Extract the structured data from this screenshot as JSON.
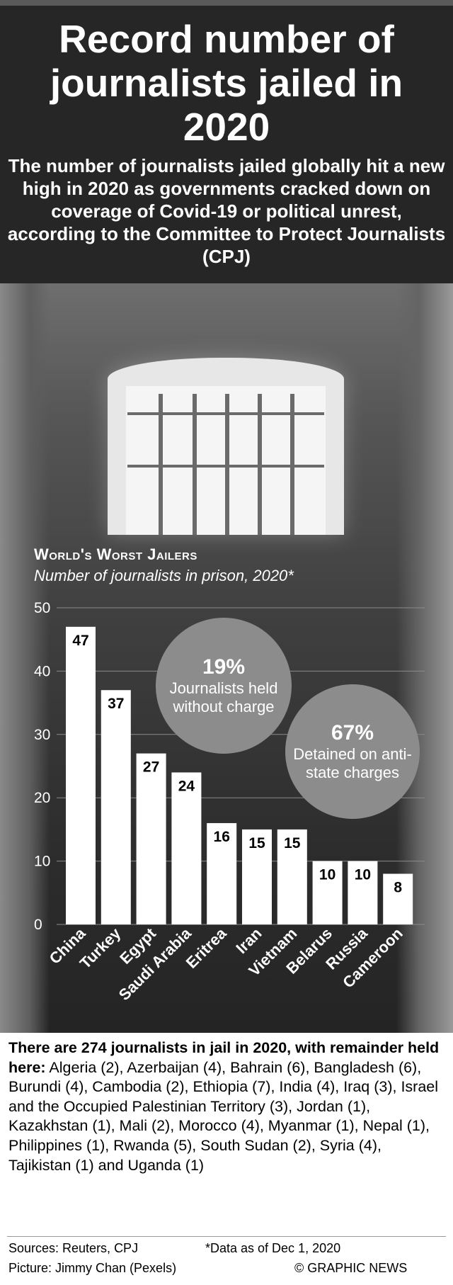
{
  "title": "Record number of journalists jailed in 2020",
  "subtitle": "The number of journalists jailed globally hit a new high in 2020 as governments cracked down on coverage of Covid-19 or political unrest, according to the Committee to Protect Journalists (CPJ)",
  "callouts": [
    {
      "percent": "19%",
      "text": "Journalists held without charge"
    },
    {
      "percent": "67%",
      "text": "Detained on anti-state charges"
    }
  ],
  "remainder": {
    "lead": "There are 274 journalists in jail in 2020, with remainder held here:",
    "list": "Algeria (2), Azerbaijan (4), Bahrain (6), Bangladesh (6), Burundi (4), Cambodia (2), Ethiopia (7), India (4), Iraq (3), Israel and the Occupied Palestinian Territory (3), Jordan (1), Kazakhstan (1), Mali (2), Morocco (4), Myanmar (1), Nepal (1), Philippines (1), Rwanda (5), South Sudan (2), Syria (4), Tajikistan (1) and Uganda (1)"
  },
  "footer": {
    "sources": "Sources: Reuters, CPJ",
    "note": "*Data as of Dec 1, 2020",
    "picture": "Picture: Jimmy Chan (Pexels)",
    "copyright": "© GRAPHIC NEWS"
  },
  "chart_data": {
    "type": "bar",
    "title": "World's Worst Jailers",
    "subtitle": "Number of journalists in prison, 2020*",
    "categories": [
      "China",
      "Turkey",
      "Egypt",
      "Saudi Arabia",
      "Eritrea",
      "Iran",
      "Vietnam",
      "Belarus",
      "Russia",
      "Cameroon"
    ],
    "values": [
      47,
      37,
      27,
      24,
      16,
      15,
      15,
      10,
      10,
      8
    ],
    "yticks": [
      0,
      10,
      20,
      30,
      40,
      50
    ],
    "ylim": [
      0,
      50
    ],
    "xlabel": "",
    "ylabel": "",
    "grid": true,
    "colors": {
      "bar": "#ffffff",
      "grid": "#8a8a8a",
      "label": "#000000",
      "axis_text": "#ffffff"
    }
  }
}
